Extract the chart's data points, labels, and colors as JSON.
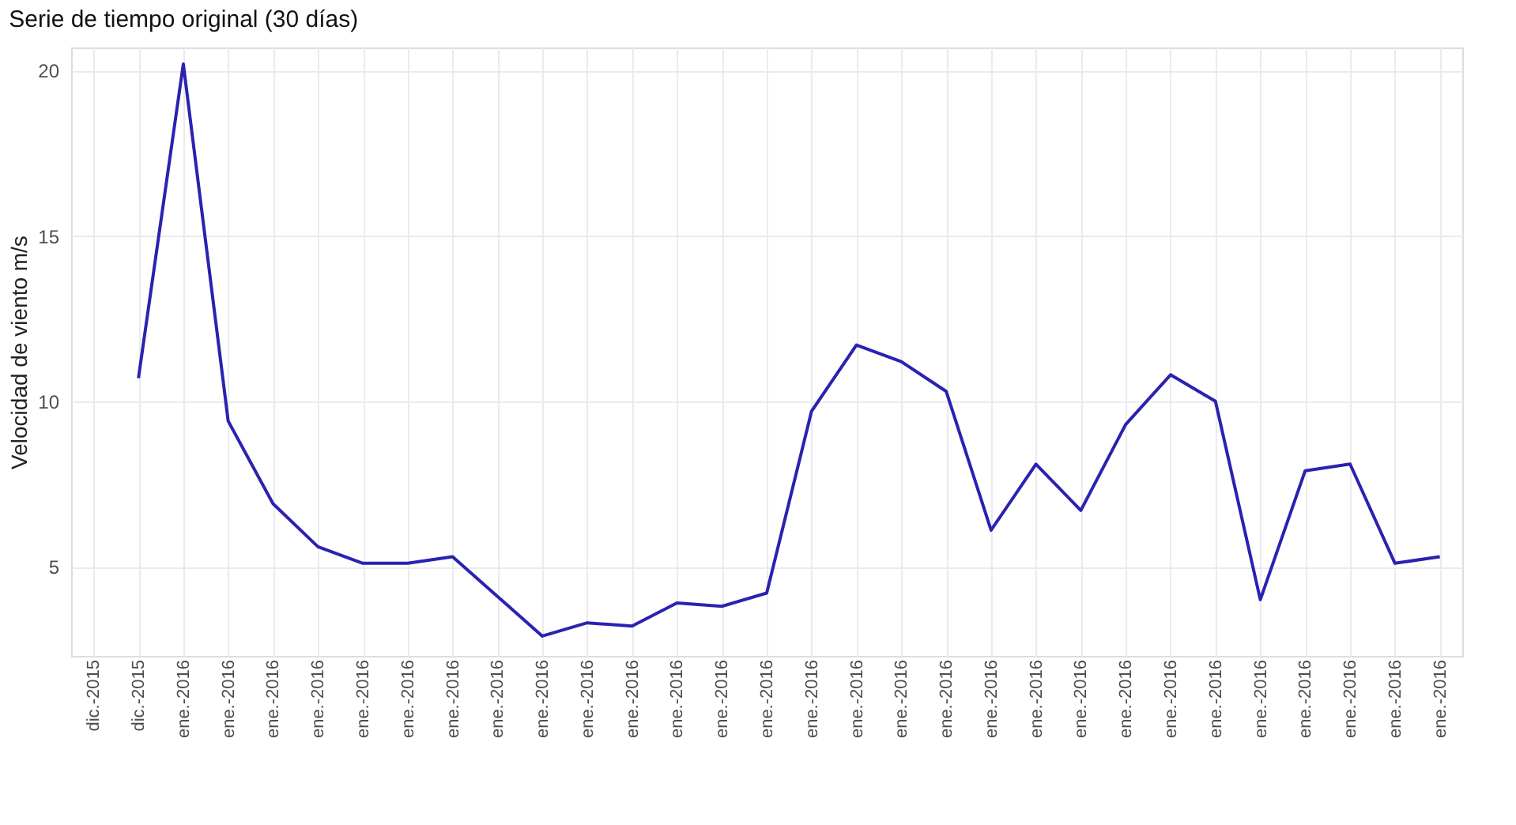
{
  "chart_data": {
    "type": "line",
    "title": "Serie de tiempo original (30 días)",
    "ylabel": "Velocidad de viento m/s",
    "categories": [
      "dic.-2015",
      "dic.-2015",
      "ene.-2016",
      "ene.-2016",
      "ene.-2016",
      "ene.-2016",
      "ene.-2016",
      "ene.-2016",
      "ene.-2016",
      "ene.-2016",
      "ene.-2016",
      "ene.-2016",
      "ene.-2016",
      "ene.-2016",
      "ene.-2016",
      "ene.-2016",
      "ene.-2016",
      "ene.-2016",
      "ene.-2016",
      "ene.-2016",
      "ene.-2016",
      "ene.-2016",
      "ene.-2016",
      "ene.-2016",
      "ene.-2016",
      "ene.-2016",
      "ene.-2016",
      "ene.-2016",
      "ene.-2016",
      "ene.-2016",
      "ene.-2016"
    ],
    "series": [
      {
        "color": "#2a22b0",
        "values": [
          null,
          10.7,
          20.2,
          9.4,
          6.9,
          5.6,
          5.1,
          5.1,
          5.3,
          4.1,
          2.9,
          3.3,
          3.2,
          3.9,
          3.8,
          4.2,
          9.7,
          11.7,
          11.2,
          10.3,
          6.1,
          8.1,
          6.7,
          9.3,
          10.8,
          10.0,
          4.0,
          7.9,
          8.1,
          5.1,
          5.3
        ]
      }
    ],
    "ylim": [
      2.3,
      20.7
    ],
    "yticks": [
      5,
      10,
      15,
      20
    ],
    "grid": true,
    "line_style": "solid"
  }
}
